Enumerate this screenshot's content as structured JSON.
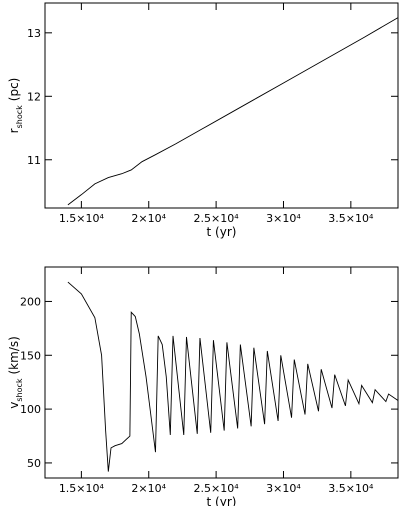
{
  "chart_data": [
    {
      "type": "line",
      "color": "#000000",
      "xlabel": "t (yr)",
      "ylabel": {
        "main": "r",
        "sub": "shock",
        "unit": "(pc)"
      },
      "xlim": [
        12300,
        38500
      ],
      "xticks": [
        {
          "value": 15000,
          "label": "1.5×10⁴"
        },
        {
          "value": 20000,
          "label": "2×10⁴"
        },
        {
          "value": 25000,
          "label": "2.5×10⁴"
        },
        {
          "value": 30000,
          "label": "3×10⁴"
        },
        {
          "value": 35000,
          "label": "3.5×10⁴"
        }
      ],
      "ylim": [
        10.24,
        13.47
      ],
      "yticks": [
        11,
        12,
        13
      ],
      "x": [
        14000,
        15000,
        16000,
        17000,
        18000,
        18700,
        19500,
        20500,
        22000,
        24000,
        26000,
        28000,
        30000,
        32000,
        34000,
        36000,
        38500
      ],
      "values": [
        10.29,
        10.45,
        10.62,
        10.72,
        10.78,
        10.84,
        10.97,
        11.08,
        11.25,
        11.49,
        11.73,
        11.97,
        12.21,
        12.45,
        12.69,
        12.93,
        13.24
      ]
    },
    {
      "type": "line",
      "color": "#000000",
      "xlabel": "t (yr)",
      "ylabel": {
        "main": "v",
        "sub": "shock",
        "unit": "(km/s)"
      },
      "xlim": [
        12300,
        38500
      ],
      "xticks": [
        {
          "value": 15000,
          "label": "1.5×10⁴"
        },
        {
          "value": 20000,
          "label": "2×10⁴"
        },
        {
          "value": 25000,
          "label": "2.5×10⁴"
        },
        {
          "value": 30000,
          "label": "3×10⁴"
        },
        {
          "value": 35000,
          "label": "3.5×10⁴"
        }
      ],
      "ylim": [
        36,
        232
      ],
      "yticks": [
        50,
        100,
        150,
        200
      ],
      "x": [
        14000,
        15000,
        16000,
        16500,
        16800,
        17000,
        17200,
        17500,
        18000,
        18600,
        18700,
        19000,
        19300,
        19800,
        20300,
        20500,
        20700,
        21000,
        21300,
        21600,
        21800,
        22600,
        22800,
        23600,
        23800,
        24600,
        24800,
        25600,
        25800,
        26600,
        26800,
        27600,
        27800,
        28600,
        28800,
        29600,
        29800,
        30600,
        30800,
        31600,
        31800,
        32600,
        32800,
        33600,
        33800,
        34600,
        34800,
        35600,
        35800,
        36600,
        36800,
        37600,
        37800,
        38500
      ],
      "values": [
        218,
        207,
        185,
        150,
        80,
        42,
        64,
        66,
        68,
        75,
        190,
        186,
        170,
        130,
        80,
        60,
        168,
        160,
        130,
        76,
        168,
        76,
        167,
        77,
        166,
        78,
        164,
        80,
        162,
        82,
        160,
        84,
        157,
        86,
        154,
        89,
        150,
        92,
        146,
        95,
        142,
        98,
        137,
        101,
        132,
        103,
        127,
        105,
        122,
        106,
        118,
        107,
        114,
        108
      ]
    }
  ]
}
